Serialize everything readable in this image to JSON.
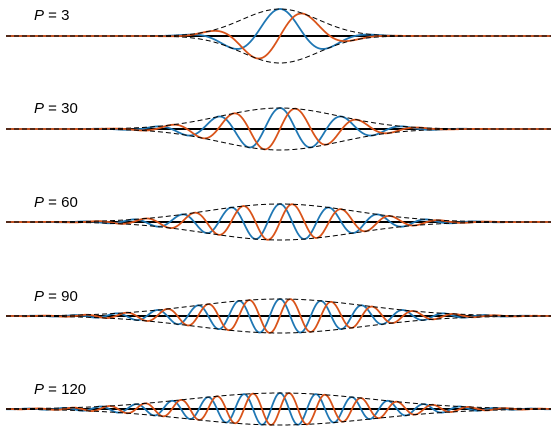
{
  "colors": {
    "blue": "#1f77b4",
    "orange": "#d95319",
    "envelope": "#000000",
    "axis": "#000000"
  },
  "panels": [
    {
      "var": "P",
      "eq": " = 3",
      "p": 3
    },
    {
      "var": "P",
      "eq": " = 30",
      "p": 30
    },
    {
      "var": "P",
      "eq": " = 60",
      "p": 60
    },
    {
      "var": "P",
      "eq": " = 90",
      "p": 90
    },
    {
      "var": "P",
      "eq": " = 120",
      "p": 120
    }
  ]
}
